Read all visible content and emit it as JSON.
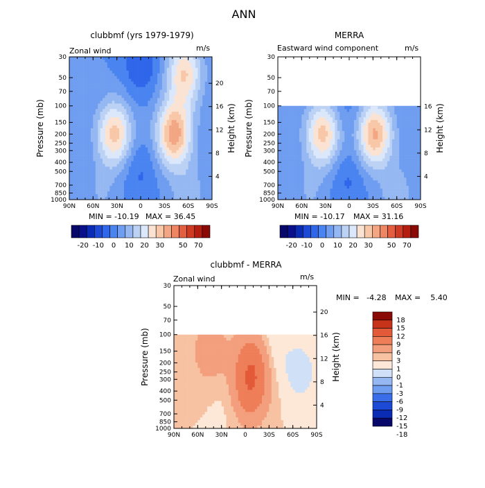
{
  "figure": {
    "title": "ANN"
  },
  "palettes": {
    "abs": [
      "#08086b",
      "#08108c",
      "#0a2bb4",
      "#1c4ad6",
      "#2f66ea",
      "#4a84f0",
      "#6f9df0",
      "#96b8f2",
      "#bcd2f5",
      "#dbe7fa",
      "#fbe3d3",
      "#f7c7a8",
      "#f3a684",
      "#ee8664",
      "#e45f40",
      "#cf3a22",
      "#b41e10",
      "#8a0a05"
    ],
    "diff": [
      "#08086b",
      "#0a2bb4",
      "#1c4ad6",
      "#3a6de8",
      "#6f9df0",
      "#96b8f2",
      "#cfe0f7",
      "#fde8d8",
      "#f7c2a2",
      "#f39e7c",
      "#ee7e58",
      "#e35a38",
      "#c63319",
      "#8a0a05"
    ]
  },
  "chart_data": [
    {
      "id": "clubbmf",
      "type": "heatmap",
      "title": "clubbmf (yrs 1979-1979)",
      "field": "Zonal wind",
      "units": "m/s",
      "xlabel": "",
      "ylabel": "Pressure (mb)",
      "ylabel_right": "Height (km)",
      "x_ticks": [
        "90N",
        "60N",
        "30N",
        "0",
        "30S",
        "60S",
        "90S"
      ],
      "x_tick_values": [
        90,
        60,
        30,
        0,
        -30,
        -60,
        -90
      ],
      "xlim": [
        90,
        -90
      ],
      "y_ticks": [
        "30",
        "50",
        "70",
        "100",
        "150",
        "200",
        "250",
        "300",
        "400",
        "500",
        "700",
        "850",
        "1000"
      ],
      "y_tick_values": [
        30,
        50,
        70,
        100,
        150,
        200,
        250,
        300,
        400,
        500,
        700,
        850,
        1000
      ],
      "ylim": [
        1000,
        30
      ],
      "yscale": "log",
      "height_ticks": [
        "4",
        "8",
        "12",
        "16",
        "20"
      ],
      "min": -10.19,
      "max": 36.45,
      "min_label": "MIN = -10.19",
      "max_label": "MAX = 36.45",
      "features": [
        {
          "lat": -42,
          "p": 200,
          "u": 33
        },
        {
          "lat": -55,
          "p": 45,
          "u": 25
        },
        {
          "lat": 33,
          "p": 200,
          "u": 27
        },
        {
          "lat": 0,
          "p": 35,
          "u": -10
        },
        {
          "lat": 2,
          "p": 500,
          "u": -6
        },
        {
          "lat": -60,
          "p": 900,
          "u": 8
        },
        {
          "lat": 50,
          "p": 900,
          "u": 5
        }
      ],
      "top_cutoff_p": 30
    },
    {
      "id": "merra",
      "type": "heatmap",
      "title": "MERRA",
      "field": "Eastward wind component",
      "units": "m/s",
      "xlabel": "",
      "ylabel": "Pressure (mb)",
      "ylabel_right": "Height (km)",
      "x_ticks": [
        "90N",
        "60N",
        "30N",
        "0",
        "30S",
        "60S",
        "90S"
      ],
      "x_tick_values": [
        90,
        60,
        30,
        0,
        -30,
        -60,
        -90
      ],
      "xlim": [
        90,
        -90
      ],
      "y_ticks": [
        "30",
        "50",
        "70",
        "100",
        "150",
        "200",
        "250",
        "300",
        "400",
        "500",
        "700",
        "850",
        "1000"
      ],
      "y_tick_values": [
        30,
        50,
        70,
        100,
        150,
        200,
        250,
        300,
        400,
        500,
        700,
        850,
        1000
      ],
      "ylim": [
        1000,
        30
      ],
      "yscale": "log",
      "height_ticks": [
        "4",
        "8",
        "12",
        "16"
      ],
      "min": -10.17,
      "max": 31.16,
      "min_label": "MIN = -10.17",
      "max_label": "MAX = 31.16",
      "features": [
        {
          "lat": -32,
          "p": 200,
          "u": 31
        },
        {
          "lat": 33,
          "p": 200,
          "u": 27
        },
        {
          "lat": 2,
          "p": 110,
          "u": -4
        },
        {
          "lat": 2,
          "p": 600,
          "u": -6
        },
        {
          "lat": -60,
          "p": 900,
          "u": 8
        },
        {
          "lat": 50,
          "p": 900,
          "u": 5
        }
      ],
      "top_cutoff_p": 100
    },
    {
      "id": "diff",
      "type": "heatmap",
      "title": "clubbmf - MERRA",
      "field": "Zonal wind",
      "units": "m/s",
      "xlabel": "",
      "ylabel": "Pressure (mb)",
      "ylabel_right": "Height (km)",
      "x_ticks": [
        "90N",
        "60N",
        "30N",
        "0",
        "30S",
        "60S",
        "90S"
      ],
      "x_tick_values": [
        90,
        60,
        30,
        0,
        -30,
        -60,
        -90
      ],
      "xlim": [
        90,
        -90
      ],
      "y_ticks": [
        "30",
        "50",
        "70",
        "100",
        "150",
        "200",
        "250",
        "300",
        "400",
        "500",
        "700",
        "850",
        "1000"
      ],
      "y_tick_values": [
        30,
        50,
        70,
        100,
        150,
        200,
        250,
        300,
        400,
        500,
        700,
        850,
        1000
      ],
      "ylim": [
        1000,
        30
      ],
      "yscale": "log",
      "height_ticks": [
        "4",
        "8",
        "12",
        "16",
        "20"
      ],
      "min": -4.28,
      "max": 5.4,
      "min_label": "MIN =   -4.28",
      "max_label": "MAX =    5.40",
      "features": [
        {
          "lat": -10,
          "p": 200,
          "u": 4.5
        },
        {
          "lat": -5,
          "p": 400,
          "u": 4
        },
        {
          "lat": 45,
          "p": 150,
          "u": 2
        },
        {
          "lat": -30,
          "p": 150,
          "u": -1.5
        },
        {
          "lat": -70,
          "p": 250,
          "u": -1.5
        },
        {
          "lat": 20,
          "p": 500,
          "u": -0.5
        }
      ],
      "top_cutoff_p": 100
    }
  ],
  "colorbars": {
    "abs": {
      "levels": [
        -25,
        -20,
        -15,
        -10,
        -5,
        0,
        5,
        10,
        15,
        20,
        25,
        30,
        35,
        40,
        50,
        60,
        70
      ],
      "labels": [
        "-20",
        "-10",
        "0",
        "10",
        "20",
        "30",
        "50",
        "70"
      ]
    },
    "diff": {
      "levels": [
        -18,
        -15,
        -12,
        -9,
        -6,
        -3,
        -1,
        0,
        1,
        3,
        6,
        9,
        12,
        15,
        18
      ],
      "labels": [
        "-18",
        "-15",
        "-12",
        "-9",
        "-6",
        "-3",
        "-1",
        "0",
        "1",
        "3",
        "6",
        "9",
        "12",
        "15",
        "18"
      ]
    }
  }
}
